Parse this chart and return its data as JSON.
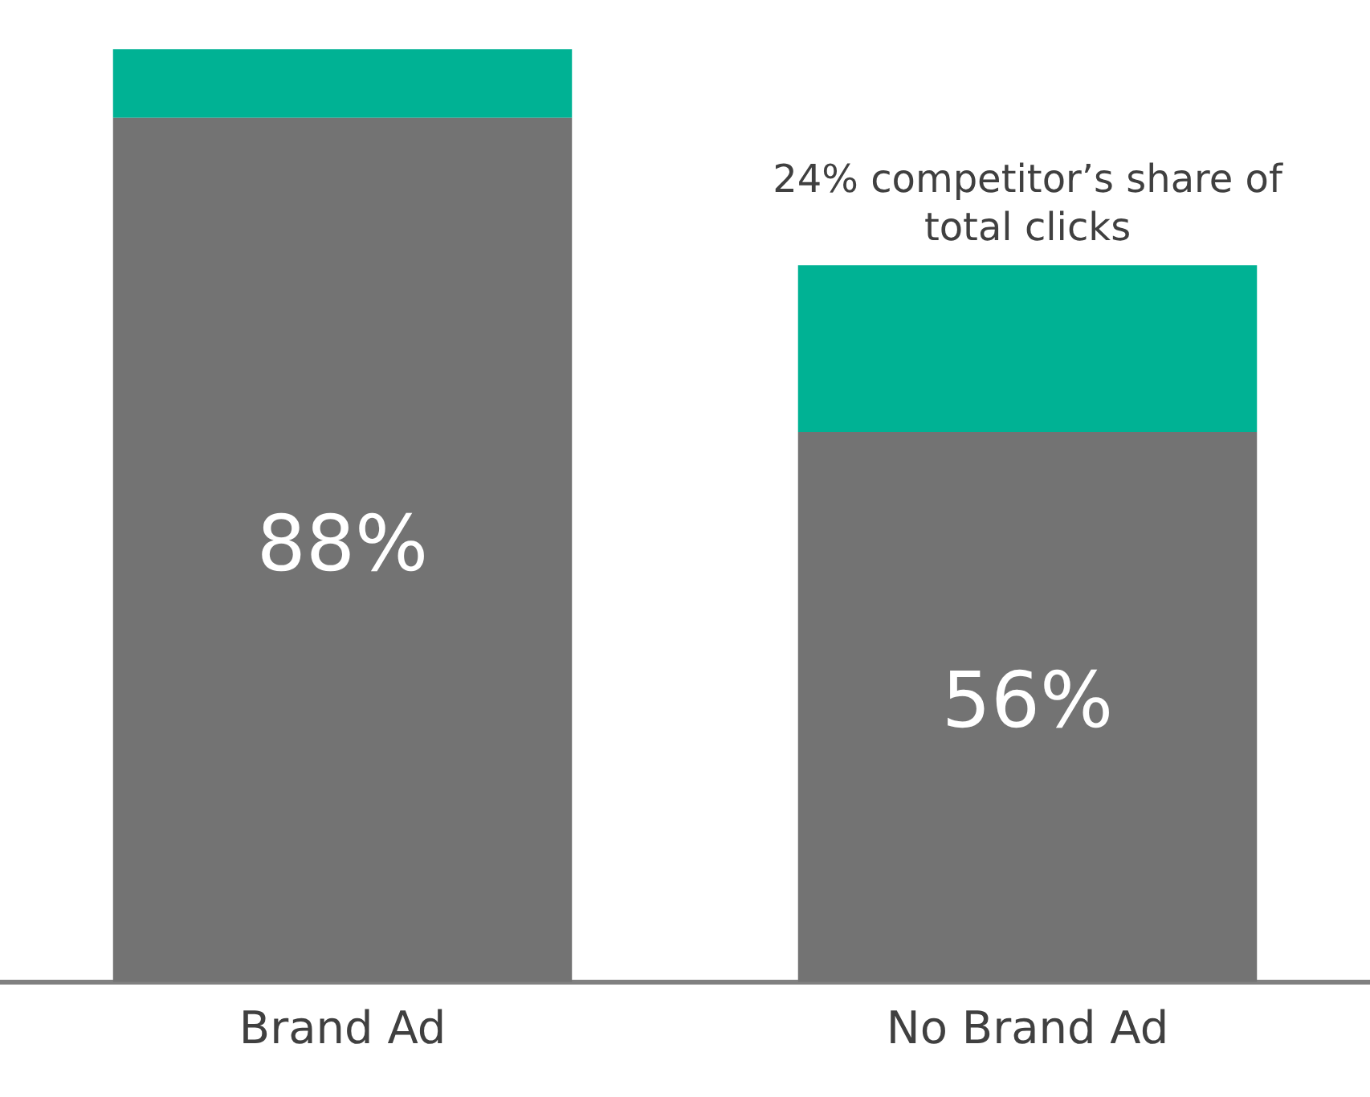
{
  "chart_data": {
    "type": "bar",
    "stacked": true,
    "categories": [
      "Brand Ad",
      "No Brand Ad"
    ],
    "series": [
      {
        "color": "#737373",
        "values": [
          88,
          56
        ],
        "value_labels": [
          "88%",
          "56%"
        ]
      },
      {
        "color": "#00b294",
        "values": [
          7,
          17
        ]
      }
    ],
    "tick_labels": "x",
    "grid": false,
    "legend": false,
    "annotations": [
      {
        "text": "24% competitor’s share of total clicks",
        "x": "No Brand Ad",
        "y": 73
      }
    ]
  }
}
